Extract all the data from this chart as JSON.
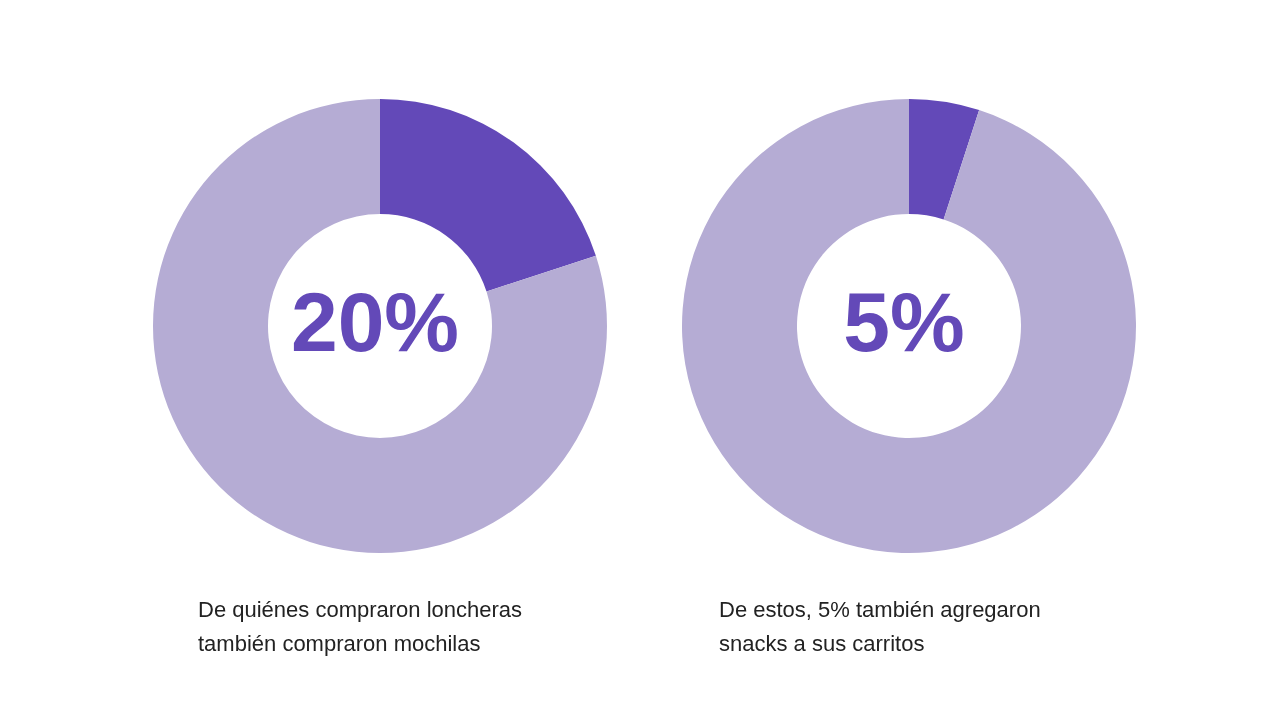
{
  "chart_data": [
    {
      "type": "donut",
      "categories": [
        null,
        null
      ],
      "values": [
        20,
        80
      ],
      "colors": [
        "#6349b8",
        "#b5acd4"
      ],
      "title": "20%",
      "annotations": [
        "De quiénes compraron loncheras también compraron mochilas"
      ]
    },
    {
      "type": "donut",
      "categories": [
        null,
        null
      ],
      "values": [
        5,
        95
      ],
      "colors": [
        "#6349b8",
        "#b5acd4"
      ],
      "title": "5%",
      "annotations": [
        "De estos, 5% también agregaron snacks a sus carritos"
      ]
    }
  ]
}
